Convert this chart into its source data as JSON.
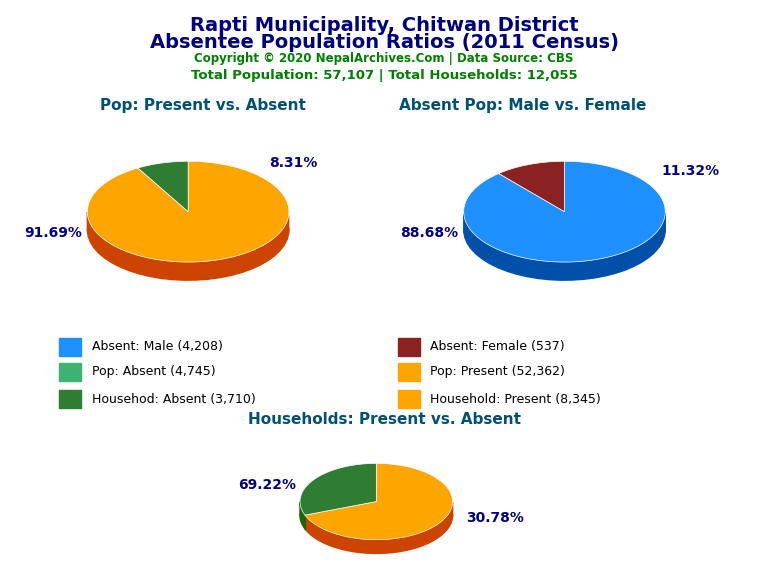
{
  "title_line1": "Rapti Municipality, Chitwan District",
  "title_line2": "Absentee Population Ratios (2011 Census)",
  "title_color": "#000080",
  "copyright_text": "Copyright © 2020 NepalArchives.Com | Data Source: CBS",
  "copyright_color": "#008000",
  "stats_text": "Total Population: 57,107 | Total Households: 12,055",
  "stats_color": "#008000",
  "pie1_title": "Pop: Present vs. Absent",
  "pie1_values": [
    91.69,
    8.31
  ],
  "pie1_colors": [
    "#FFA500",
    "#2E7D32"
  ],
  "pie1_labels": [
    "91.69%",
    "8.31%"
  ],
  "pie1_label_angles": [
    200,
    50
  ],
  "pie2_title": "Absent Pop: Male vs. Female",
  "pie2_values": [
    88.68,
    11.32
  ],
  "pie2_colors": [
    "#1E90FF",
    "#8B2222"
  ],
  "pie2_labels": [
    "88.68%",
    "11.32%"
  ],
  "pie2_label_angles": [
    200,
    40
  ],
  "pie3_title": "Households: Present vs. Absent",
  "pie3_values": [
    69.22,
    30.78
  ],
  "pie3_colors": [
    "#FFA500",
    "#2E7D32"
  ],
  "pie3_labels": [
    "69.22%",
    "30.78%"
  ],
  "pie3_label_angles": [
    160,
    340
  ],
  "title_fontsize": 14,
  "pie_title_fontsize": 11,
  "pie_title_color": "#005073",
  "pct_color": "#000080",
  "legend_items": [
    {
      "label": "Absent: Male (4,208)",
      "color": "#1E90FF"
    },
    {
      "label": "Absent: Female (537)",
      "color": "#8B2222"
    },
    {
      "label": "Pop: Absent (4,745)",
      "color": "#3CB371"
    },
    {
      "label": "Pop: Present (52,362)",
      "color": "#FFA500"
    },
    {
      "label": "Househod: Absent (3,710)",
      "color": "#2E7D32"
    },
    {
      "label": "Household: Present (8,345)",
      "color": "#FFA500"
    }
  ],
  "shadow_color": "#8B4513",
  "shadow_dark_colors": [
    "#CC4400",
    "#1A6600"
  ],
  "shadow_dark_colors2": [
    "#0050AA",
    "#5C1010"
  ],
  "shadow_dark_colors3": [
    "#CC4400",
    "#1A6600"
  ],
  "background_color": "#FFFFFF"
}
